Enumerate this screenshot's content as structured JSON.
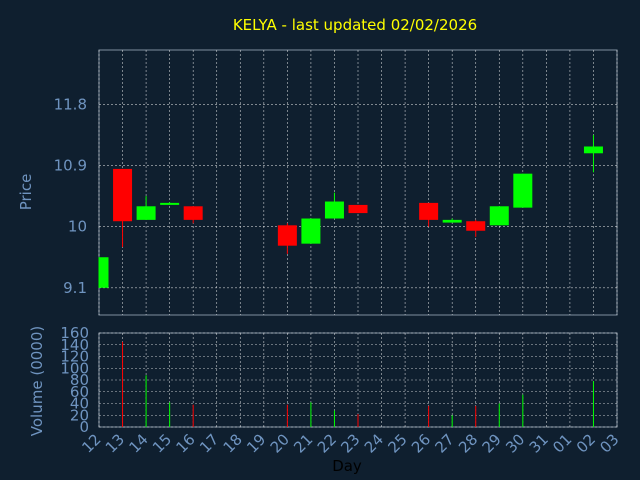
{
  "colors": {
    "background": "#0f1f2f",
    "title": "#ffff00",
    "axis_text": "#6f94c0",
    "xlabel_text": "#000000",
    "grid": "#ffffff",
    "up": "#00ff00",
    "down": "#ff0000"
  },
  "chart_data": {
    "type": "candlestick",
    "title": "KELYA - last updated 02/02/2026",
    "price_panel": {
      "ylabel": "Price",
      "ylim": [
        8.7,
        12.6
      ],
      "yticks": [
        9.1,
        10,
        10.9,
        11.8
      ],
      "ytick_labels": [
        "9.1",
        "10",
        "10.9",
        "11.8"
      ]
    },
    "volume_panel": {
      "ylabel": "Volume (0000)",
      "ylim": [
        0,
        160
      ],
      "yticks": [
        0,
        20,
        40,
        60,
        80,
        100,
        120,
        140,
        160
      ],
      "ytick_labels": [
        "0",
        "20",
        "40",
        "60",
        "80",
        "100",
        "120",
        "140",
        "160"
      ]
    },
    "xlabel": "Day",
    "xtick_labels": [
      "12",
      "13",
      "14",
      "15",
      "16",
      "17",
      "18",
      "19",
      "20",
      "21",
      "22",
      "23",
      "24",
      "25",
      "26",
      "27",
      "28",
      "29",
      "30",
      "31",
      "01",
      "02",
      "03"
    ],
    "candles": [
      {
        "day": "12",
        "open": 9.1,
        "close": 9.55,
        "high": 9.55,
        "low": 9.1,
        "volume": 0
      },
      {
        "day": "13",
        "open": 10.85,
        "close": 10.08,
        "high": 10.85,
        "low": 9.7,
        "volume": 145
      },
      {
        "day": "14",
        "open": 10.1,
        "close": 10.3,
        "high": 10.45,
        "low": 10.1,
        "volume": 88
      },
      {
        "day": "15",
        "open": 10.33,
        "close": 10.35,
        "high": 10.36,
        "low": 10.33,
        "volume": 42
      },
      {
        "day": "16",
        "open": 10.3,
        "close": 10.1,
        "high": 10.3,
        "low": 10.05,
        "volume": 38
      },
      {
        "day": "20",
        "open": 10.02,
        "close": 9.72,
        "high": 10.05,
        "low": 9.6,
        "volume": 38
      },
      {
        "day": "21",
        "open": 9.75,
        "close": 10.12,
        "high": 10.12,
        "low": 9.75,
        "volume": 42
      },
      {
        "day": "22",
        "open": 10.12,
        "close": 10.37,
        "high": 10.5,
        "low": 10.12,
        "volume": 28
      },
      {
        "day": "23",
        "open": 10.32,
        "close": 10.2,
        "high": 10.32,
        "low": 10.2,
        "volume": 22
      },
      {
        "day": "26",
        "open": 10.35,
        "close": 10.1,
        "high": 10.35,
        "low": 10.0,
        "volume": 36
      },
      {
        "day": "27",
        "open": 10.06,
        "close": 10.1,
        "high": 10.12,
        "low": 10.06,
        "volume": 20
      },
      {
        "day": "28",
        "open": 10.08,
        "close": 9.94,
        "high": 10.1,
        "low": 9.85,
        "volume": 36
      },
      {
        "day": "29",
        "open": 10.02,
        "close": 10.3,
        "high": 10.3,
        "low": 10.02,
        "volume": 40
      },
      {
        "day": "30",
        "open": 10.28,
        "close": 10.78,
        "high": 10.78,
        "low": 10.28,
        "volume": 55
      },
      {
        "day": "02",
        "open": 11.08,
        "close": 11.18,
        "high": 11.35,
        "low": 10.8,
        "volume": 78
      }
    ]
  }
}
